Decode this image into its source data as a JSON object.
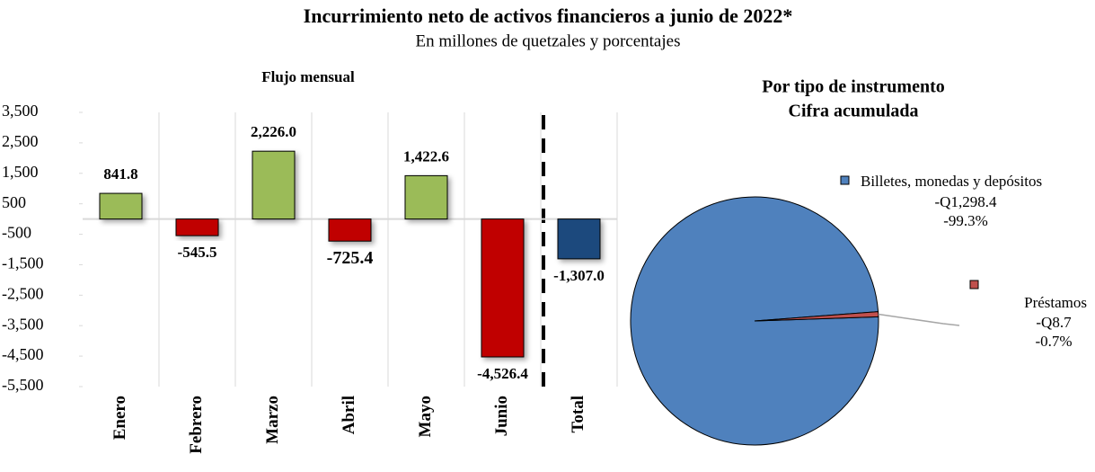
{
  "title": "Incurrimiento neto de activos financieros a junio de 2022*",
  "subtitle": "En millones de quetzales y porcentajes",
  "chart_data": [
    {
      "type": "bar",
      "title": "Flujo mensual",
      "categories": [
        "Enero",
        "Febrero",
        "Marzo",
        "Abril",
        "Mayo",
        "Junio",
        "Total"
      ],
      "values": [
        841.8,
        -545.5,
        2226.0,
        -725.4,
        1422.6,
        -4526.4,
        -1307.0
      ],
      "value_labels": [
        "841.8",
        "-545.5",
        "2,226.0",
        "-725.4",
        "1,422.6",
        "-4,526.4",
        "-1,307.0"
      ],
      "colors": [
        "#9bbb59",
        "#c00000",
        "#9bbb59",
        "#c00000",
        "#9bbb59",
        "#c00000",
        "#1f497d"
      ],
      "ylim": [
        -5500,
        3500
      ],
      "yticks": [
        {
          "value": 3500,
          "label": "3,500"
        },
        {
          "value": 2500,
          "label": "2,500"
        },
        {
          "value": 1500,
          "label": "1,500"
        },
        500,
        -500,
        {
          "value": -1500,
          "label": "-1,500"
        },
        {
          "value": -2500,
          "label": "-2,500"
        },
        {
          "value": -3500,
          "label": "-3,500"
        },
        {
          "value": -4500,
          "label": "-4,500"
        },
        {
          "value": -5500,
          "label": "-5,500"
        }
      ],
      "grid": true
    },
    {
      "type": "pie",
      "title": "Por tipo de instrumento",
      "subtitle": "Cifra acumulada",
      "categories": [
        "Billetes, monedas y depósitos",
        "Préstamos"
      ],
      "values": [
        -1298.4,
        -8.7
      ],
      "value_labels": [
        "-Q1,298.4",
        "-Q8.7"
      ],
      "percentages": [
        -99.3,
        -0.7
      ],
      "percentage_labels": [
        "-99.3%",
        "-0.7%"
      ],
      "colors": [
        "#4f81bd",
        "#c0504d"
      ]
    }
  ]
}
